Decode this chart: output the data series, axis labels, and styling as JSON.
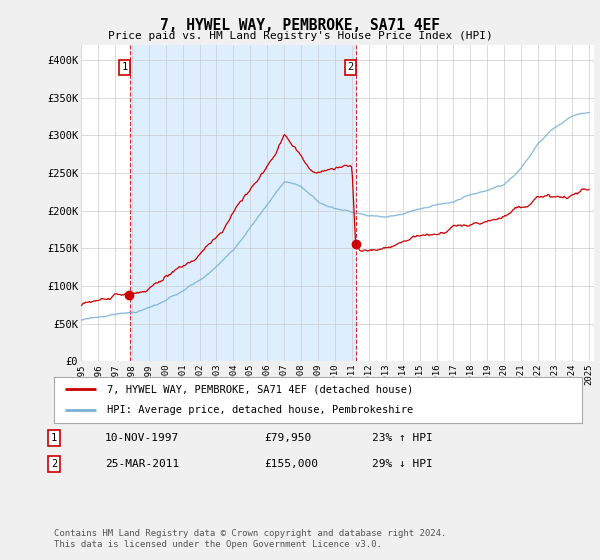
{
  "title": "7, HYWEL WAY, PEMBROKE, SA71 4EF",
  "subtitle": "Price paid vs. HM Land Registry's House Price Index (HPI)",
  "bg_color": "#f0f0f0",
  "plot_bg_color": "#ffffff",
  "shade_color": "#ddeeff",
  "sale1_date": "10-NOV-1997",
  "sale1_price": 79950,
  "sale1_year": 1997.87,
  "sale2_date": "25-MAR-2011",
  "sale2_price": 155000,
  "sale2_year": 2011.22,
  "legend_line1": "7, HYWEL WAY, PEMBROKE, SA71 4EF (detached house)",
  "legend_line2": "HPI: Average price, detached house, Pembrokeshire",
  "footer": "Contains HM Land Registry data © Crown copyright and database right 2024.\nThis data is licensed under the Open Government Licence v3.0.",
  "red_color": "#cc0000",
  "blue_color": "#7ab0d4",
  "ylim_max": 420000,
  "ylim_min": 0,
  "yticks": [
    0,
    50000,
    100000,
    150000,
    200000,
    250000,
    300000,
    350000,
    400000
  ],
  "ytick_labels": [
    "£0",
    "£50K",
    "£100K",
    "£150K",
    "£200K",
    "£250K",
    "£300K",
    "£350K",
    "£400K"
  ]
}
